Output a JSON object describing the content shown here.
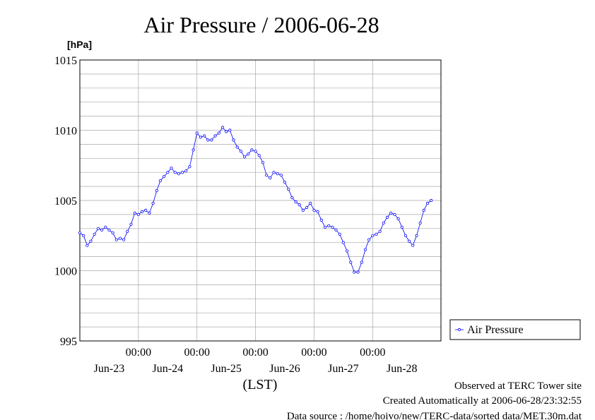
{
  "chart_data": {
    "type": "line",
    "title": "Air Pressure / 2006-06-28",
    "ylabel": "[hPa]",
    "xlabel": "(LST)",
    "ylim": [
      995,
      1015
    ],
    "y_ticks": [
      "1015",
      "1010",
      "1005",
      "1000",
      "995"
    ],
    "x_range_hours": [
      0,
      148
    ],
    "time_ticks": [
      "00:00",
      "00:00",
      "00:00",
      "00:00",
      "00:00"
    ],
    "date_labels": [
      "Jun-23",
      "Jun-24",
      "Jun-25",
      "Jun-26",
      "Jun-27",
      "Jun-28"
    ],
    "grid": true,
    "legend_position": "right",
    "series": [
      {
        "name": "Air Pressure",
        "color": "#0000ff",
        "points": [
          [
            0,
            1002.7
          ],
          [
            1.5,
            1002.5
          ],
          [
            3,
            1001.8
          ],
          [
            4.5,
            1002.1
          ],
          [
            6,
            1002.6
          ],
          [
            7.5,
            1003.0
          ],
          [
            9,
            1002.9
          ],
          [
            10.5,
            1003.1
          ],
          [
            12,
            1002.9
          ],
          [
            13.5,
            1002.7
          ],
          [
            15,
            1002.2
          ],
          [
            16.5,
            1002.3
          ],
          [
            18,
            1002.2
          ],
          [
            19.5,
            1002.8
          ],
          [
            21,
            1003.3
          ],
          [
            22.5,
            1004.1
          ],
          [
            24,
            1004.0
          ],
          [
            25.5,
            1004.2
          ],
          [
            27,
            1004.3
          ],
          [
            28.5,
            1004.1
          ],
          [
            30,
            1004.8
          ],
          [
            31.5,
            1005.7
          ],
          [
            33,
            1006.4
          ],
          [
            34.5,
            1006.7
          ],
          [
            36,
            1007.0
          ],
          [
            37.5,
            1007.3
          ],
          [
            39,
            1007.0
          ],
          [
            40.5,
            1006.9
          ],
          [
            42,
            1007.0
          ],
          [
            43.5,
            1007.1
          ],
          [
            45,
            1007.4
          ],
          [
            46.5,
            1008.6
          ],
          [
            48,
            1009.8
          ],
          [
            49.5,
            1009.5
          ],
          [
            51,
            1009.6
          ],
          [
            52.5,
            1009.3
          ],
          [
            54,
            1009.3
          ],
          [
            55.5,
            1009.6
          ],
          [
            57,
            1009.8
          ],
          [
            58.5,
            1010.2
          ],
          [
            60,
            1009.9
          ],
          [
            61.5,
            1010.0
          ],
          [
            63,
            1009.3
          ],
          [
            64.5,
            1008.8
          ],
          [
            66,
            1008.5
          ],
          [
            67.5,
            1008.1
          ],
          [
            69,
            1008.3
          ],
          [
            70.5,
            1008.6
          ],
          [
            72,
            1008.5
          ],
          [
            73.5,
            1008.2
          ],
          [
            75,
            1007.7
          ],
          [
            76.5,
            1006.8
          ],
          [
            78,
            1006.6
          ],
          [
            79.5,
            1007.0
          ],
          [
            81,
            1006.9
          ],
          [
            82.5,
            1006.8
          ],
          [
            84,
            1006.3
          ],
          [
            85.5,
            1005.8
          ],
          [
            87,
            1005.2
          ],
          [
            88.5,
            1004.9
          ],
          [
            90,
            1004.7
          ],
          [
            91.5,
            1004.3
          ],
          [
            93,
            1004.5
          ],
          [
            94.5,
            1004.8
          ],
          [
            96,
            1004.3
          ],
          [
            97.5,
            1004.2
          ],
          [
            99,
            1003.6
          ],
          [
            100.5,
            1003.1
          ],
          [
            102,
            1003.2
          ],
          [
            103.5,
            1003.1
          ],
          [
            105,
            1002.9
          ],
          [
            106.5,
            1002.6
          ],
          [
            108,
            1002.0
          ],
          [
            109.5,
            1001.4
          ],
          [
            111,
            1000.6
          ],
          [
            112.5,
            999.9
          ],
          [
            114,
            999.9
          ],
          [
            115.5,
            1000.6
          ],
          [
            117,
            1001.5
          ],
          [
            118.5,
            1002.2
          ],
          [
            120,
            1002.5
          ],
          [
            121.5,
            1002.6
          ],
          [
            123,
            1002.8
          ],
          [
            124.5,
            1003.4
          ],
          [
            126,
            1003.8
          ],
          [
            127.5,
            1004.1
          ],
          [
            129,
            1004.0
          ],
          [
            130.5,
            1003.7
          ],
          [
            132,
            1003.1
          ],
          [
            133.5,
            1002.5
          ],
          [
            135,
            1002.1
          ],
          [
            136.5,
            1001.8
          ],
          [
            138,
            1002.5
          ],
          [
            139.5,
            1003.4
          ],
          [
            141,
            1004.3
          ],
          [
            142.5,
            1004.8
          ],
          [
            144,
            1005.0
          ]
        ]
      }
    ]
  },
  "footer": {
    "line1": "Observed at TERC Tower site",
    "line2": "Created Automatically at 2006-06-28/23:32:55",
    "line3": "Data source : /home/hoivo/new/TERC-data/sorted  data/MET.30m.dat"
  }
}
